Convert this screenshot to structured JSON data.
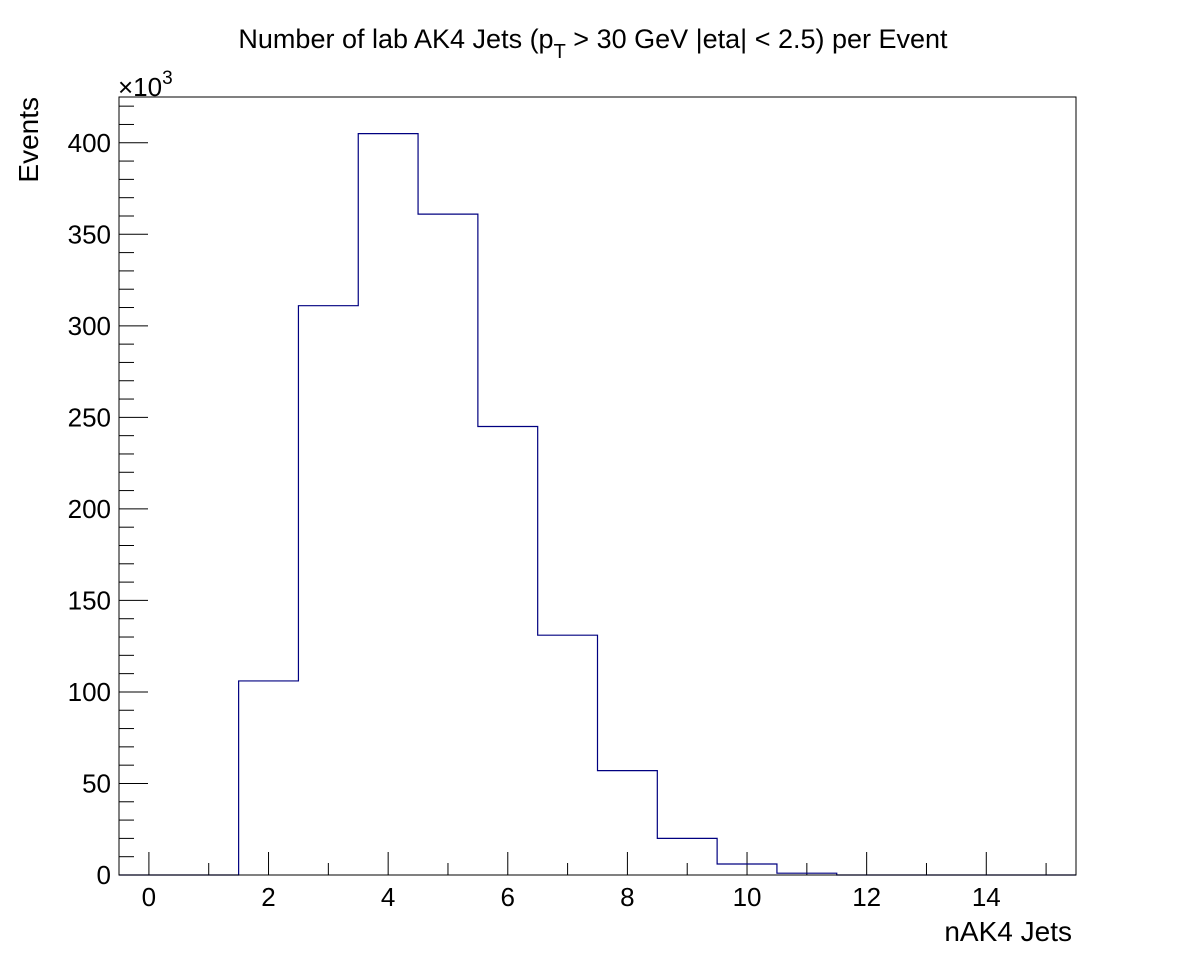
{
  "chart_data": {
    "type": "bar",
    "title_main": "Number of lab AK4 Jets (p",
    "title_sub": "T",
    "title_rest": " > 30 GeV |eta| < 2.5) per Event",
    "xlabel": "nAK4 Jets",
    "ylabel": "Events",
    "y_multiplier_base": "×10",
    "y_multiplier_exp": "3",
    "xlim": [
      -0.5,
      15.5
    ],
    "ylim": [
      0,
      425
    ],
    "x_ticks": [
      0,
      2,
      4,
      6,
      8,
      10,
      12,
      14
    ],
    "y_ticks": [
      0,
      50,
      100,
      150,
      200,
      250,
      300,
      350,
      400
    ],
    "bin_edges": [
      -0.5,
      0.5,
      1.5,
      2.5,
      3.5,
      4.5,
      5.5,
      6.5,
      7.5,
      8.5,
      9.5,
      10.5,
      11.5,
      12.5,
      13.5,
      14.5,
      15.5
    ],
    "values": [
      0,
      0,
      106,
      311,
      405,
      361,
      245,
      131,
      57,
      20,
      6,
      1,
      0,
      0,
      0,
      0
    ],
    "line_color": "#000080",
    "grid": false,
    "legend": "none"
  }
}
